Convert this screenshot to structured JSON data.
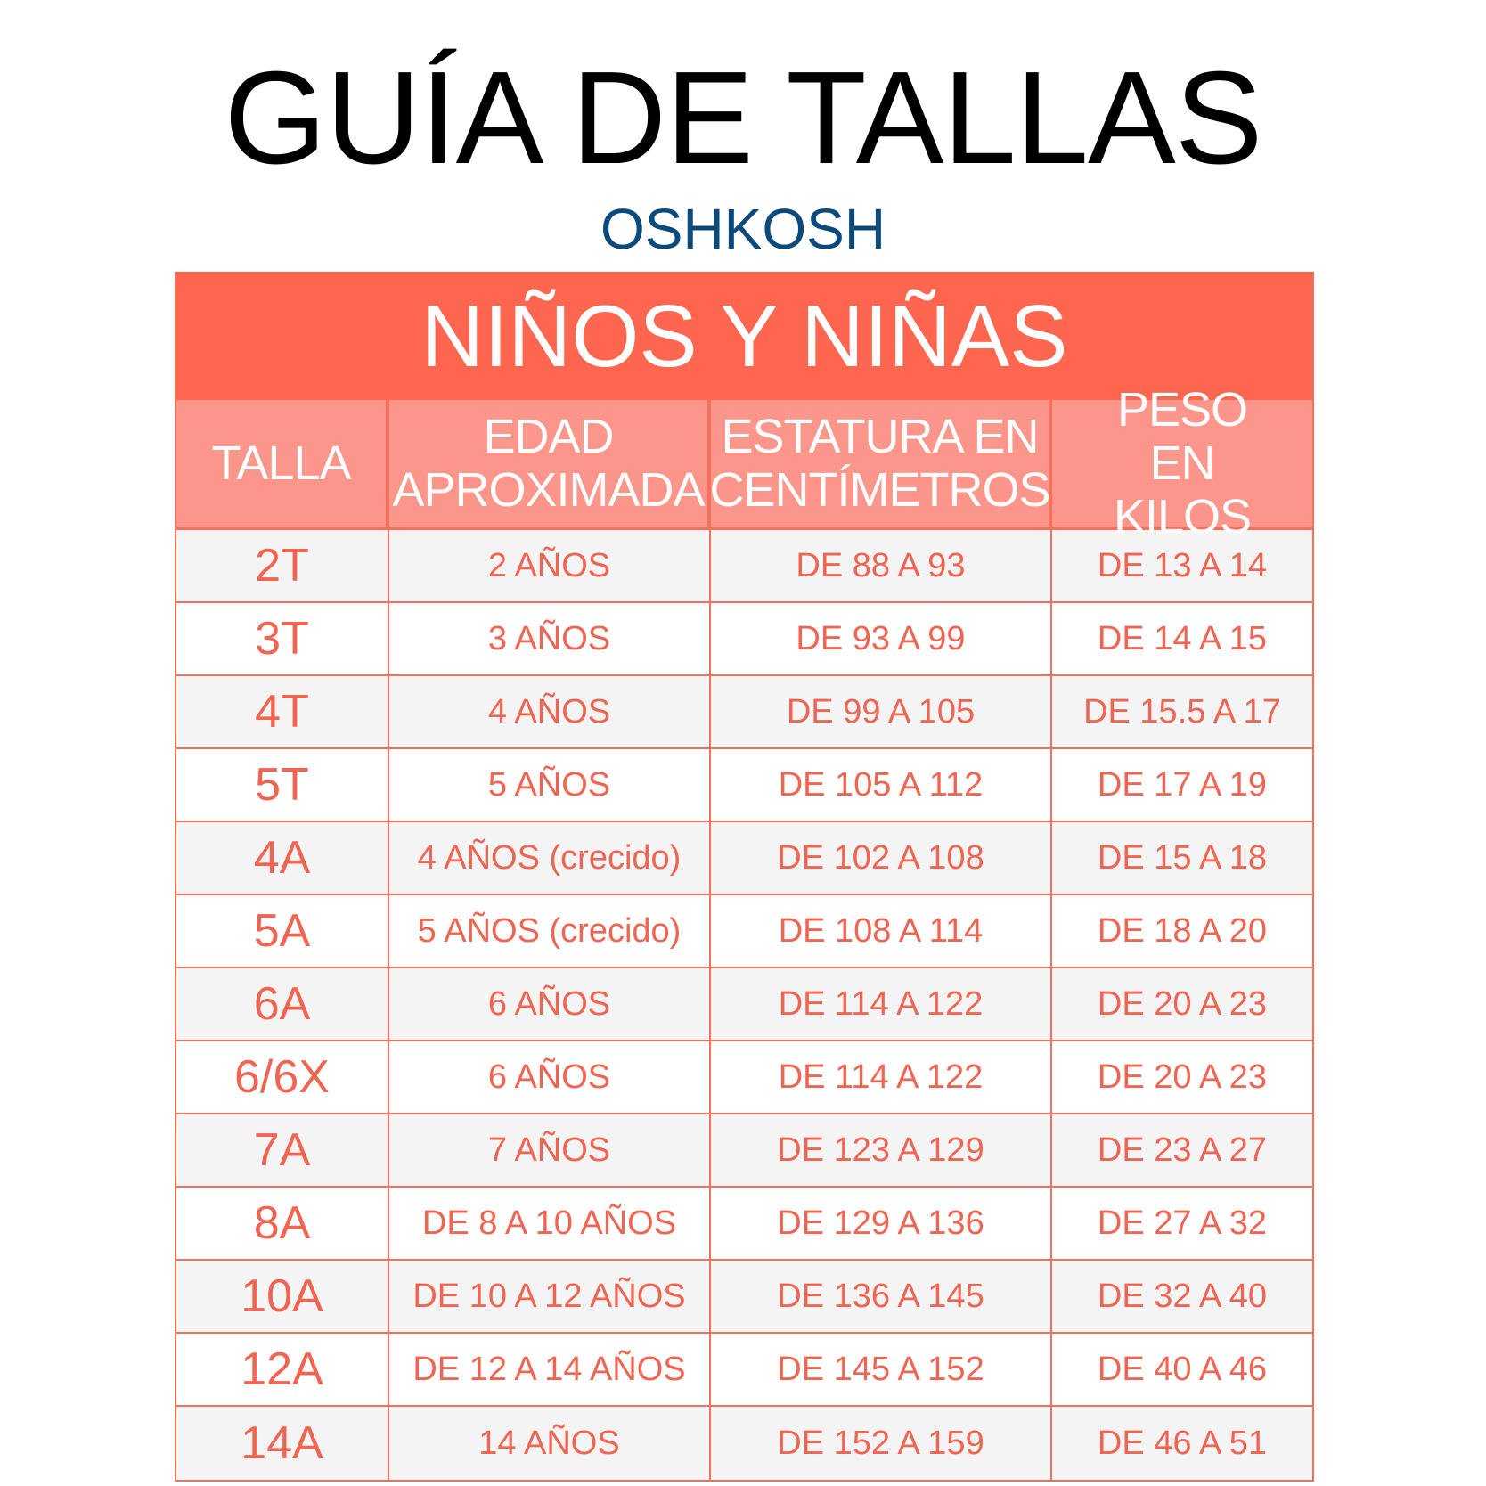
{
  "title": "GUÍA DE TALLAS",
  "brand": "OSHKOSH",
  "table": {
    "banner": "NIÑOS Y NIÑAS",
    "headers": [
      "TALLA",
      "EDAD APROXIMADA",
      "ESTATURA EN CENTÍMETROS",
      "PESO EN KILOS"
    ],
    "rows": [
      [
        "2T",
        "2 AÑOS",
        "DE 88 A 93",
        "DE 13 A 14"
      ],
      [
        "3T",
        "3 AÑOS",
        "DE 93 A 99",
        "DE 14 A 15"
      ],
      [
        "4T",
        "4 AÑOS",
        "DE 99 A 105",
        "DE 15.5 A 17"
      ],
      [
        "5T",
        "5 AÑOS",
        "DE 105 A 112",
        "DE 17 A 19"
      ],
      [
        "4A",
        "4 AÑOS (crecido)",
        "DE 102 A 108",
        "DE 15 A 18"
      ],
      [
        "5A",
        "5 AÑOS (crecido)",
        "DE 108 A 114",
        "DE 18 A 20"
      ],
      [
        "6A",
        "6 AÑOS",
        "DE 114 A 122",
        "DE 20 A 23"
      ],
      [
        "6/6X",
        "6 AÑOS",
        "DE 114 A 122",
        "DE 20 A 23"
      ],
      [
        "7A",
        "7 AÑOS",
        "DE 123 A 129",
        "DE 23 A 27"
      ],
      [
        "8A",
        "DE 8 A 10 AÑOS",
        "DE 129 A 136",
        "DE 27 A 32"
      ],
      [
        "10A",
        "DE 10 A 12 AÑOS",
        "DE 136 A 145",
        "DE 32 A 40"
      ],
      [
        "12A",
        "DE 12 A 14 AÑOS",
        "DE 145 A 152",
        "DE 40 A 46"
      ],
      [
        "14A",
        "14 AÑOS",
        "DE 152 A 159",
        "DE 46 A 51"
      ]
    ]
  },
  "colors": {
    "banner": "#ff6650",
    "header": "#fc968a",
    "text": "#f06552",
    "brand": "#0b4a7c"
  }
}
